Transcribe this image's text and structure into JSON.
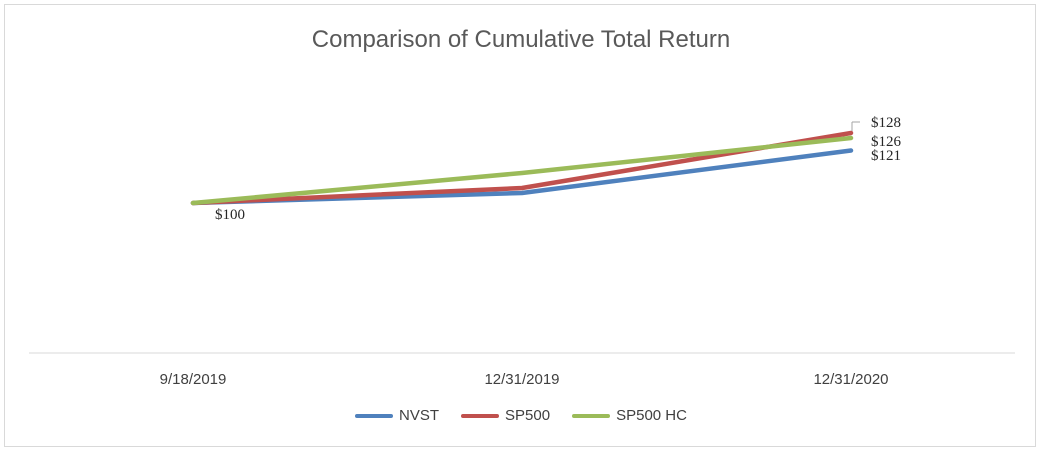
{
  "chart_data": {
    "type": "line",
    "title": "Comparison of Cumulative Total Return",
    "categories": [
      "9/18/2019",
      "12/31/2019",
      "12/31/2020"
    ],
    "xlabel": "",
    "ylabel": "",
    "ylim": [
      40,
      160
    ],
    "grid": false,
    "legend_position": "bottom",
    "series": [
      {
        "name": "NVST",
        "color": "#4F81BD",
        "values": [
          100,
          104,
          121
        ]
      },
      {
        "name": "SP500",
        "color": "#C0504D",
        "values": [
          100,
          106,
          128
        ]
      },
      {
        "name": "SP500 HC",
        "color": "#9BBB59",
        "values": [
          100,
          112,
          126
        ]
      }
    ],
    "data_labels": [
      {
        "text": "$100",
        "series": "NVST",
        "index": 0
      },
      {
        "text": "$128",
        "series": "SP500",
        "index": 2
      },
      {
        "text": "$126",
        "series": "SP500 HC",
        "index": 2
      },
      {
        "text": "$121",
        "series": "NVST",
        "index": 2
      }
    ]
  }
}
